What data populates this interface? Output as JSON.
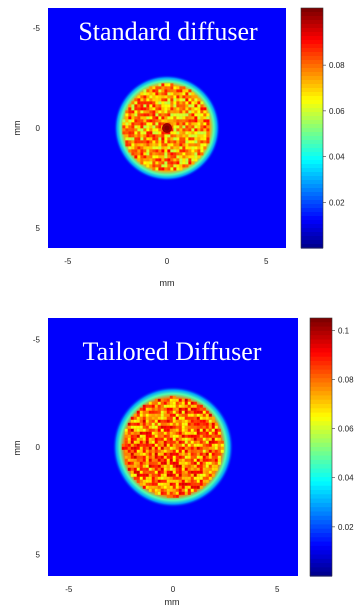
{
  "chart_data": [
    {
      "type": "heatmap",
      "title": "Standard diffuser",
      "xlabel": "mm",
      "ylabel": "mm",
      "xlim": [
        -6,
        6
      ],
      "ylim": [
        -6,
        6
      ],
      "x_ticks": [
        "-5",
        "0",
        "5"
      ],
      "y_ticks": [
        "-5",
        "0",
        "5"
      ],
      "colorbar": {
        "ticks": [
          "0.02",
          "0.04",
          "0.06",
          "0.08"
        ],
        "range": [
          0,
          0.105
        ]
      },
      "spot": {
        "shape": "circle",
        "center": [
          0,
          0
        ],
        "radius_mm": 2.4,
        "mean_value": 0.075,
        "peak_value": 0.105,
        "hot_spot": true
      },
      "background_value": 0.005
    },
    {
      "type": "heatmap",
      "title": "Tailored Diffuser",
      "xlabel": "mm",
      "ylabel": "mm",
      "xlim": [
        -6,
        6
      ],
      "ylim": [
        -6,
        6
      ],
      "x_ticks": [
        "-5",
        "0",
        "5"
      ],
      "y_ticks": [
        "-5",
        "0",
        "5"
      ],
      "colorbar": {
        "ticks": [
          "0.02",
          "0.04",
          "0.06",
          "0.08",
          "0.1"
        ],
        "range": [
          0,
          0.105
        ]
      },
      "spot": {
        "shape": "circle",
        "center": [
          0,
          0
        ],
        "radius_mm": 2.6,
        "mean_value": 0.08,
        "peak_value": 0.1,
        "hot_spot": false
      },
      "background_value": 0.005
    }
  ]
}
